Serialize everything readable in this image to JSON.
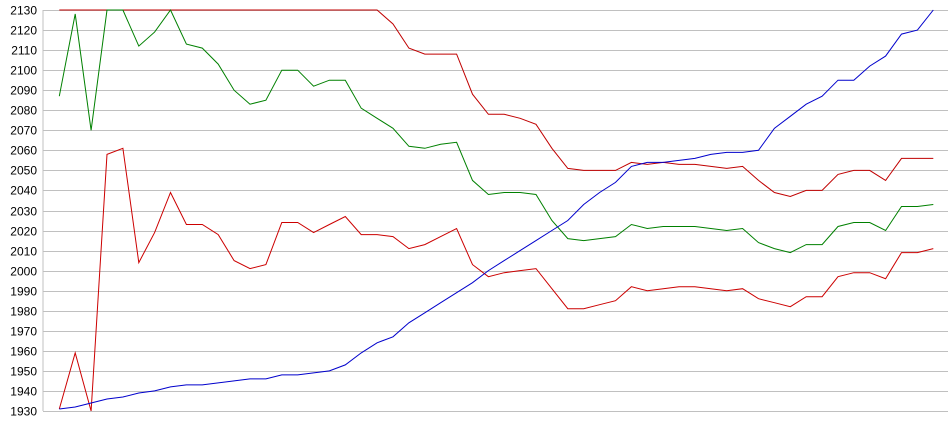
{
  "chart_data": {
    "type": "line",
    "title": "",
    "xlabel": "",
    "ylabel": "",
    "ylim": [
      1930,
      2130
    ],
    "y_ticks": [
      "1930",
      "1940",
      "1950",
      "1960",
      "1970",
      "1980",
      "1990",
      "2000",
      "2010",
      "2020",
      "2030",
      "2040",
      "2050",
      "2060",
      "2070",
      "2080",
      "2090",
      "2100",
      "2110",
      "2120",
      "2130"
    ],
    "grid": "horizontal",
    "legend": "none",
    "x": [
      0,
      1,
      2,
      3,
      4,
      5,
      6,
      7,
      8,
      9,
      10,
      11,
      12,
      13,
      14,
      15,
      16,
      17,
      18,
      19,
      20,
      21,
      22,
      23,
      24,
      25,
      26,
      27,
      28,
      29,
      30,
      31,
      32,
      33,
      34,
      35,
      36,
      37,
      38,
      39,
      40,
      41,
      42,
      43,
      44,
      45,
      46,
      47,
      48,
      49,
      50,
      51,
      52,
      53,
      54,
      55
    ],
    "series": [
      {
        "color": "#c00000",
        "values": [
          2130,
          2130,
          2130,
          2130,
          2130,
          2130,
          2130,
          2130,
          2130,
          2130,
          2130,
          2130,
          2130,
          2130,
          2130,
          2130,
          2130,
          2130,
          2130,
          2130,
          2130,
          2123,
          2111,
          2108,
          2108,
          2108,
          2088,
          2078,
          2078,
          2076,
          2073,
          2061,
          2051,
          2050,
          2050,
          2050,
          2054,
          2053,
          2054,
          2053,
          2053,
          2052,
          2051,
          2052,
          2045,
          2039,
          2037,
          2040,
          2040,
          2048,
          2050,
          2050,
          2045,
          2056,
          2056,
          2056
        ]
      },
      {
        "color": "#008000",
        "values": [
          2087,
          2128,
          2070,
          2130,
          2130,
          2112,
          2119,
          2130,
          2113,
          2111,
          2103,
          2090,
          2083,
          2085,
          2100,
          2100,
          2092,
          2095,
          2095,
          2081,
          2076,
          2071,
          2062,
          2061,
          2063,
          2064,
          2045,
          2038,
          2039,
          2039,
          2038,
          2025,
          2016,
          2015,
          2016,
          2017,
          2023,
          2021,
          2022,
          2022,
          2022,
          2021,
          2020,
          2021,
          2014,
          2011,
          2009,
          2013,
          2013,
          2022,
          2024,
          2024,
          2020,
          2032,
          2032,
          2033
        ]
      },
      {
        "color": "#cc0000",
        "values": [
          1931,
          1959,
          1930,
          2058,
          2061,
          2004,
          2019,
          2039,
          2023,
          2023,
          2018,
          2005,
          2001,
          2003,
          2024,
          2024,
          2019,
          2023,
          2027,
          2018,
          2018,
          2017,
          2011,
          2013,
          2017,
          2021,
          2003,
          1997,
          1999,
          2000,
          2001,
          1991,
          1981,
          1981,
          1983,
          1985,
          1992,
          1990,
          1991,
          1992,
          1992,
          1991,
          1990,
          1991,
          1986,
          1984,
          1982,
          1987,
          1987,
          1997,
          1999,
          1999,
          1996,
          2009,
          2009,
          2011
        ]
      },
      {
        "color": "#0000cc",
        "values": [
          1931,
          1932,
          1934,
          1936,
          1937,
          1939,
          1940,
          1942,
          1943,
          1943,
          1944,
          1945,
          1946,
          1946,
          1948,
          1948,
          1949,
          1950,
          1953,
          1959,
          1964,
          1967,
          1974,
          1979,
          1984,
          1989,
          1994,
          2000,
          2005,
          2010,
          2015,
          2020,
          2025,
          2033,
          2039,
          2044,
          2052,
          2054,
          2054,
          2055,
          2056,
          2058,
          2059,
          2059,
          2060,
          2071,
          2077,
          2083,
          2087,
          2095,
          2095,
          2102,
          2107,
          2118,
          2120,
          2130
        ]
      }
    ]
  }
}
